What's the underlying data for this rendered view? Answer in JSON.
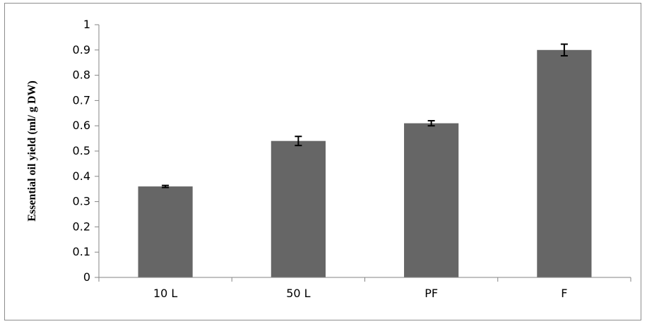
{
  "chart_data": {
    "type": "bar",
    "title": "",
    "xlabel": "",
    "ylabel": "Essential oil yield (ml/ g DW)",
    "categories": [
      "10 L",
      "50 L",
      "PF",
      "F"
    ],
    "values": [
      0.36,
      0.54,
      0.61,
      0.9
    ],
    "error": [
      0.004,
      0.018,
      0.01,
      0.023
    ],
    "ylim": [
      0,
      1
    ],
    "yticks": [
      0,
      0.1,
      0.2,
      0.3,
      0.4,
      0.5,
      0.6,
      0.7,
      0.8,
      0.9,
      1
    ],
    "ytick_labels": [
      "0",
      "0.1",
      "0.2",
      "0.3",
      "0.4",
      "0.5",
      "0.6",
      "0.7",
      "0.8",
      "0.9",
      "1"
    ],
    "grid": false,
    "legend": false,
    "bar_color": "#666666"
  }
}
